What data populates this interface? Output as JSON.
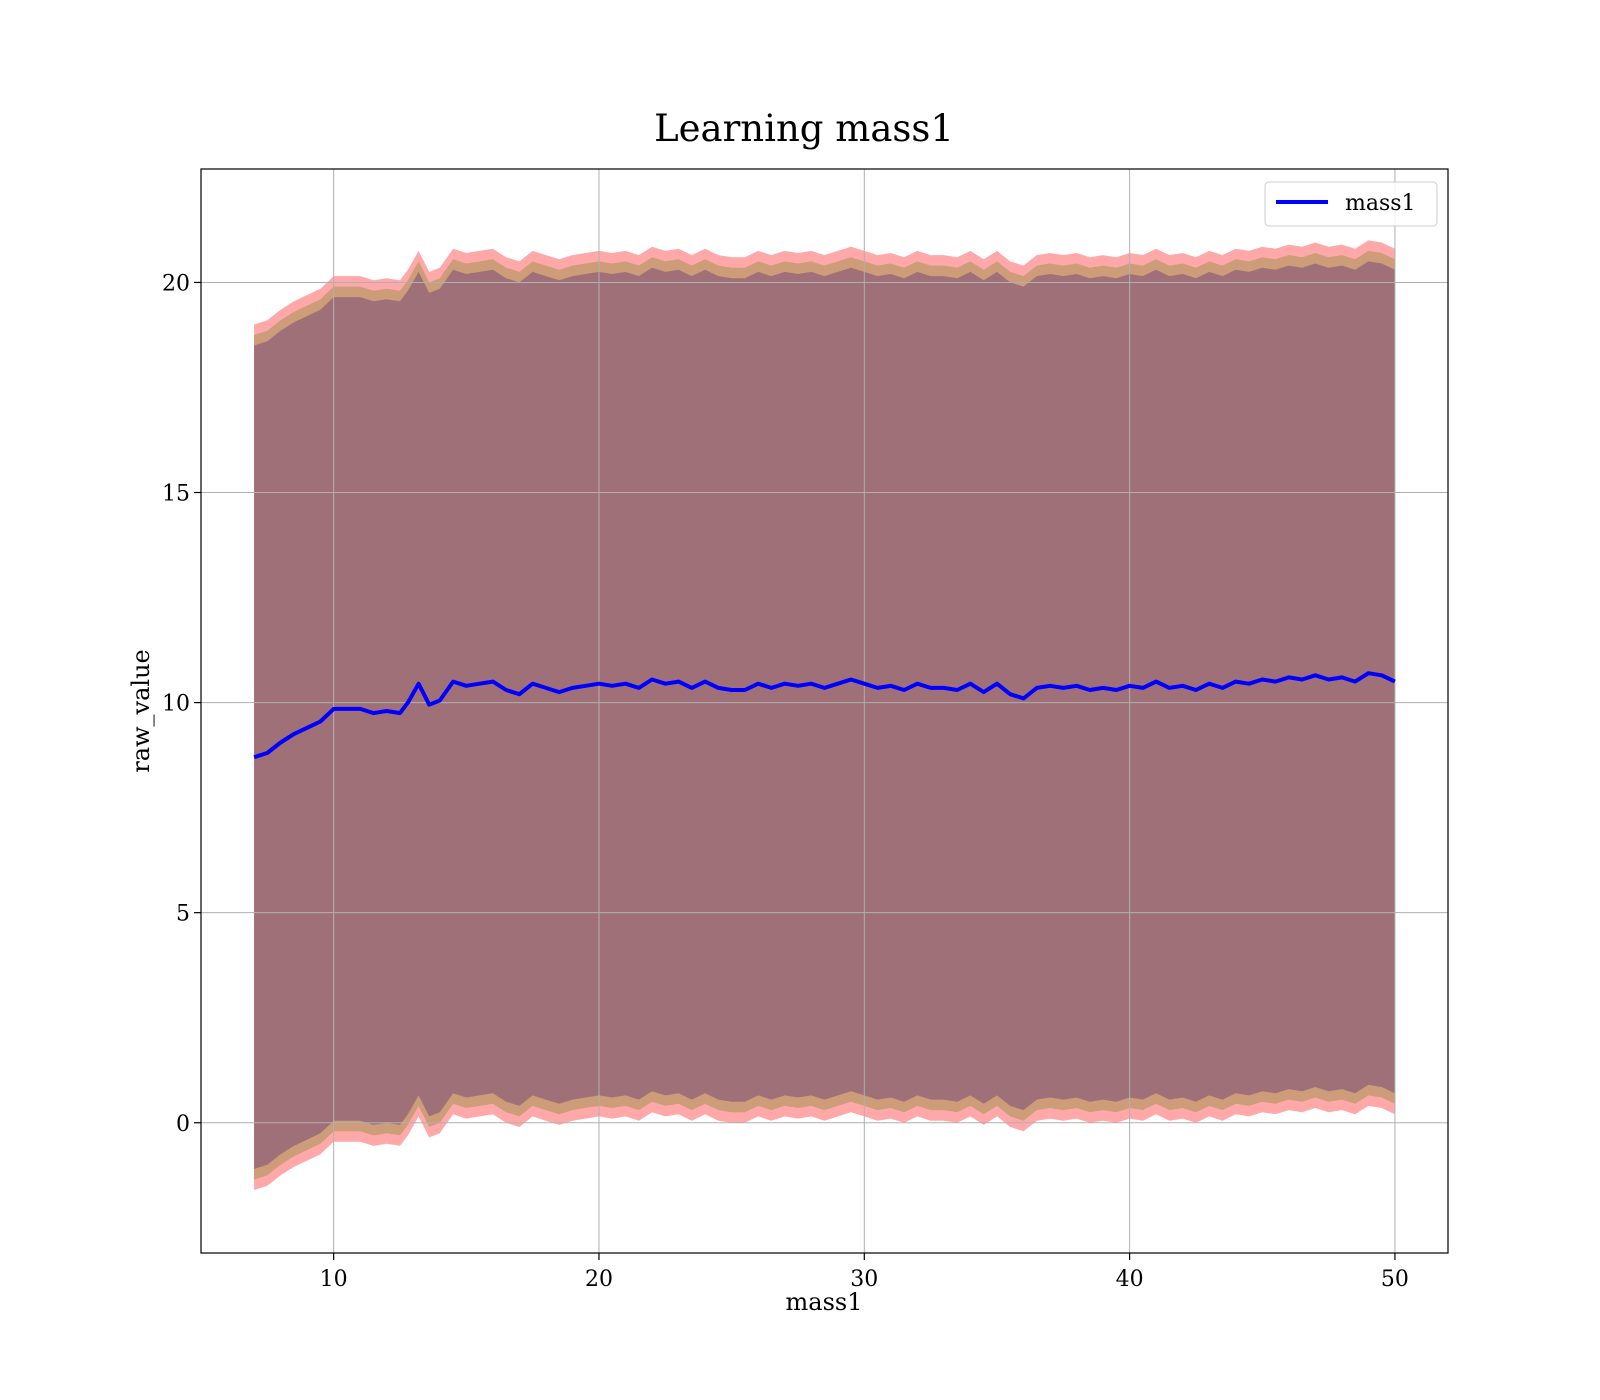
{
  "chart_data": {
    "type": "line",
    "title": "Learning mass1",
    "xlabel": "mass1",
    "ylabel": "raw_value",
    "xlim": [
      5,
      52
    ],
    "ylim": [
      -3.1,
      22.7
    ],
    "xticks": [
      10,
      20,
      30,
      40,
      50
    ],
    "yticks": [
      0,
      5,
      10,
      15,
      20
    ],
    "grid": true,
    "legend": {
      "position": "top-right",
      "entries": [
        "mass1"
      ]
    },
    "colors": {
      "line": "#0000ff",
      "band_outer": "#ff9ea0",
      "band_mid": "#c89a72",
      "band_inner": "#a07078",
      "grid": "#b0b0b0"
    },
    "series": [
      {
        "name": "mass1",
        "x": [
          7,
          7.5,
          8,
          8.5,
          9,
          9.5,
          10,
          10.5,
          11,
          11.5,
          12,
          12.5,
          12.8,
          13.2,
          13.6,
          14,
          14.5,
          15,
          15.5,
          16,
          16.5,
          17,
          17.5,
          18,
          18.5,
          19,
          19.5,
          20,
          20.5,
          21,
          21.5,
          22,
          22.5,
          23,
          23.5,
          24,
          24.5,
          25,
          25.5,
          26,
          26.5,
          27,
          27.5,
          28,
          28.5,
          29,
          29.5,
          30,
          30.5,
          31,
          31.5,
          32,
          32.5,
          33,
          33.5,
          34,
          34.5,
          35,
          35.5,
          36,
          36.5,
          37,
          37.5,
          38,
          38.5,
          39,
          39.5,
          40,
          40.5,
          41,
          41.5,
          42,
          42.5,
          43,
          43.5,
          44,
          44.5,
          45,
          45.5,
          46,
          46.5,
          47,
          47.5,
          48,
          48.5,
          49,
          49.5,
          50
        ],
        "y": [
          8.7,
          8.8,
          9.05,
          9.25,
          9.4,
          9.55,
          9.85,
          9.85,
          9.85,
          9.75,
          9.8,
          9.75,
          10.0,
          10.45,
          9.95,
          10.05,
          10.5,
          10.4,
          10.45,
          10.5,
          10.3,
          10.2,
          10.45,
          10.35,
          10.25,
          10.35,
          10.4,
          10.45,
          10.4,
          10.45,
          10.35,
          10.55,
          10.45,
          10.5,
          10.35,
          10.5,
          10.35,
          10.3,
          10.3,
          10.45,
          10.35,
          10.45,
          10.4,
          10.45,
          10.35,
          10.45,
          10.55,
          10.45,
          10.35,
          10.4,
          10.3,
          10.45,
          10.35,
          10.35,
          10.3,
          10.45,
          10.25,
          10.45,
          10.2,
          10.1,
          10.35,
          10.4,
          10.35,
          10.4,
          10.3,
          10.35,
          10.3,
          10.4,
          10.35,
          10.5,
          10.35,
          10.4,
          10.3,
          10.45,
          10.35,
          10.5,
          10.45,
          10.55,
          10.5,
          10.6,
          10.55,
          10.65,
          10.55,
          10.6,
          10.5,
          10.7,
          10.65,
          10.5
        ]
      }
    ],
    "band_halfwidths": [
      9.8,
      10.05,
      10.3
    ]
  }
}
